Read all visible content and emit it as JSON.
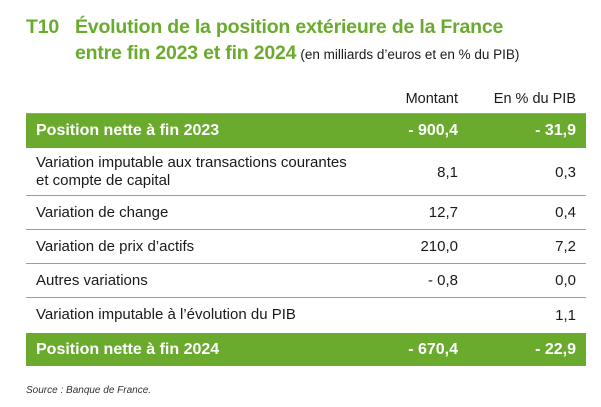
{
  "title": {
    "code": "T10",
    "line1": "Évolution de la position extérieure de la France",
    "line2": "entre fin 2023 et fin 2024",
    "unit": "(en milliards d’euros et en % du PIB)"
  },
  "columns": {
    "amount": "Montant",
    "pct": "En % du PIB"
  },
  "rows": [
    {
      "label": "Position nette à fin 2023",
      "amount": "- 900,4",
      "pct": "- 31,9",
      "highlight": true
    },
    {
      "label_line1": "Variation imputable aux transactions courantes",
      "label_line2": "et compte de capital",
      "amount": "8,1",
      "pct": "0,3"
    },
    {
      "label": "Variation de change",
      "amount": "12,7",
      "pct": "0,4"
    },
    {
      "label": "Variation de prix d’actifs",
      "amount": "210,0",
      "pct": "7,2"
    },
    {
      "label": "Autres variations",
      "amount": "- 0,8",
      "pct": "0,0"
    },
    {
      "label": "Variation imputable à l’évolution du PIB",
      "amount": "",
      "pct": "1,1"
    },
    {
      "label": "Position nette à fin 2024",
      "amount": "- 670,4",
      "pct": "- 22,9",
      "highlight": true
    }
  ],
  "source": "Source : Banque de France.",
  "colors": {
    "accent_green": "#6aab2e",
    "text": "#1a1a1a",
    "rule": "#9d9d9d"
  }
}
